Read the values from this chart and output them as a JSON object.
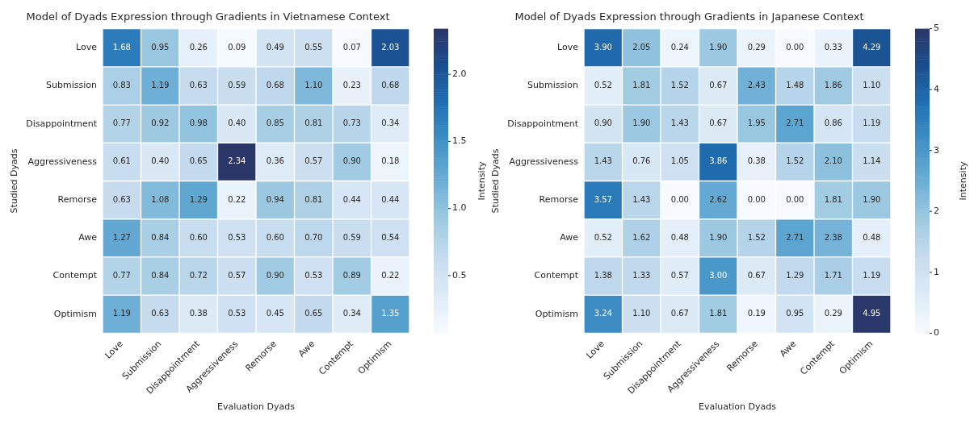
{
  "chart_data": [
    {
      "type": "heatmap",
      "title": "Model of Dyads Expression through Gradients in Vietnamese Context",
      "xlabel": "Evaluation Dyads",
      "ylabel": "Studied Dyads",
      "clabel": "Intensity",
      "categories": [
        "Love",
        "Submission",
        "Disappointment",
        "Aggressiveness",
        "Remorse",
        "Awe",
        "Contempt",
        "Optimism"
      ],
      "y_categories": [
        "Love",
        "Submission",
        "Disappointment",
        "Aggressiveness",
        "Remorse",
        "Awe",
        "Contempt",
        "Optimism"
      ],
      "cells": [
        [
          1.68,
          0.95,
          0.26,
          0.09,
          0.49,
          0.55,
          0.07,
          2.03
        ],
        [
          0.83,
          1.19,
          0.63,
          0.59,
          0.68,
          1.1,
          0.23,
          0.68
        ],
        [
          0.77,
          0.92,
          0.98,
          0.4,
          0.85,
          0.81,
          0.73,
          0.34
        ],
        [
          0.61,
          0.4,
          0.65,
          2.34,
          0.36,
          0.57,
          0.9,
          0.18
        ],
        [
          0.63,
          1.08,
          1.29,
          0.22,
          0.94,
          0.81,
          0.44,
          0.44
        ],
        [
          1.27,
          0.84,
          0.6,
          0.53,
          0.6,
          0.7,
          0.59,
          0.54
        ],
        [
          0.77,
          0.84,
          0.72,
          0.57,
          0.9,
          0.53,
          0.89,
          0.22
        ],
        [
          1.19,
          0.63,
          0.38,
          0.53,
          0.45,
          0.65,
          0.34,
          1.35
        ]
      ],
      "cell_labels": [
        [
          "1.68",
          "0.95",
          "0.26",
          "0.09",
          "0.49",
          "0.55",
          "0.07",
          "2.03"
        ],
        [
          "0.83",
          "1.19",
          "0.63",
          "0.59",
          "0.68",
          "1.10",
          "0.23",
          "0.68"
        ],
        [
          "0.77",
          "0.92",
          "0.98",
          "0.40",
          "0.85",
          "0.81",
          "0.73",
          "0.34"
        ],
        [
          "0.61",
          "0.40",
          "0.65",
          "2.34",
          "0.36",
          "0.57",
          "0.90",
          "0.18"
        ],
        [
          "0.63",
          "1.08",
          "1.29",
          "0.22",
          "0.94",
          "0.81",
          "0.44",
          "0.44"
        ],
        [
          "1.27",
          "0.84",
          "0.60",
          "0.53",
          "0.60",
          "0.70",
          "0.59",
          "0.54"
        ],
        [
          "0.77",
          "0.84",
          "0.72",
          "0.57",
          "0.90",
          "0.53",
          "0.89",
          "0.22"
        ],
        [
          "1.19",
          "0.63",
          "0.38",
          "0.53",
          "0.45",
          "0.65",
          "0.34",
          "1.35"
        ]
      ],
      "clim": [
        0.07,
        2.34
      ],
      "cticks": [
        {
          "value": 0.5,
          "label": "0.5"
        },
        {
          "value": 1,
          "label": "1.0"
        },
        {
          "value": 1.5,
          "label": "1.5"
        },
        {
          "value": 2,
          "label": "2.0"
        }
      ]
    },
    {
      "type": "heatmap",
      "title": "Model of Dyads Expression through Gradients in Japanese Context",
      "xlabel": "Evaluation Dyads",
      "ylabel": "Studied Dyads",
      "clabel": "Intensity",
      "categories": [
        "Love",
        "Submission",
        "Disappointment",
        "Aggressiveness",
        "Remorse",
        "Awe",
        "Contempt",
        "Optimism"
      ],
      "y_categories": [
        "Love",
        "Submission",
        "Disappointment",
        "Aggressiveness",
        "Remorse",
        "Awe",
        "Contempt",
        "Optimism"
      ],
      "cells": [
        [
          3.9,
          2.05,
          0.24,
          1.9,
          0.29,
          0.0,
          0.33,
          4.29
        ],
        [
          0.52,
          1.81,
          1.52,
          0.67,
          2.43,
          1.48,
          1.86,
          1.1
        ],
        [
          0.9,
          1.9,
          1.43,
          0.67,
          1.95,
          2.71,
          0.86,
          1.19
        ],
        [
          1.43,
          0.76,
          1.05,
          3.86,
          0.38,
          1.52,
          2.1,
          1.14
        ],
        [
          3.57,
          1.43,
          0.0,
          2.62,
          0.0,
          0.0,
          1.81,
          1.9
        ],
        [
          0.52,
          1.62,
          0.48,
          1.9,
          1.52,
          2.71,
          2.38,
          0.48
        ],
        [
          1.38,
          1.33,
          0.57,
          3.0,
          0.67,
          1.29,
          1.71,
          1.19
        ],
        [
          3.24,
          1.1,
          0.67,
          1.81,
          0.19,
          0.95,
          0.29,
          4.95
        ]
      ],
      "cell_labels": [
        [
          "3.90",
          "2.05",
          "0.24",
          "1.90",
          "0.29",
          "0.00",
          "0.33",
          "4.29"
        ],
        [
          "0.52",
          "1.81",
          "1.52",
          "0.67",
          "2.43",
          "1.48",
          "1.86",
          "1.10"
        ],
        [
          "0.90",
          "1.90",
          "1.43",
          "0.67",
          "1.95",
          "2.71",
          "0.86",
          "1.19"
        ],
        [
          "1.43",
          "0.76",
          "1.05",
          "3.86",
          "0.38",
          "1.52",
          "2.10",
          "1.14"
        ],
        [
          "3.57",
          "1.43",
          "0.00",
          "2.62",
          "0.00",
          "0.00",
          "1.81",
          "1.90"
        ],
        [
          "0.52",
          "1.62",
          "0.48",
          "1.90",
          "1.52",
          "2.71",
          "2.38",
          "0.48"
        ],
        [
          "1.38",
          "1.33",
          "0.57",
          "3.00",
          "0.67",
          "1.29",
          "1.71",
          "1.19"
        ],
        [
          "3.24",
          "1.10",
          "0.67",
          "1.81",
          "0.19",
          "0.95",
          "0.29",
          "4.95"
        ]
      ],
      "clim": [
        0,
        5
      ],
      "cticks": [
        0,
        1,
        2,
        3,
        4,
        5
      ]
    }
  ]
}
